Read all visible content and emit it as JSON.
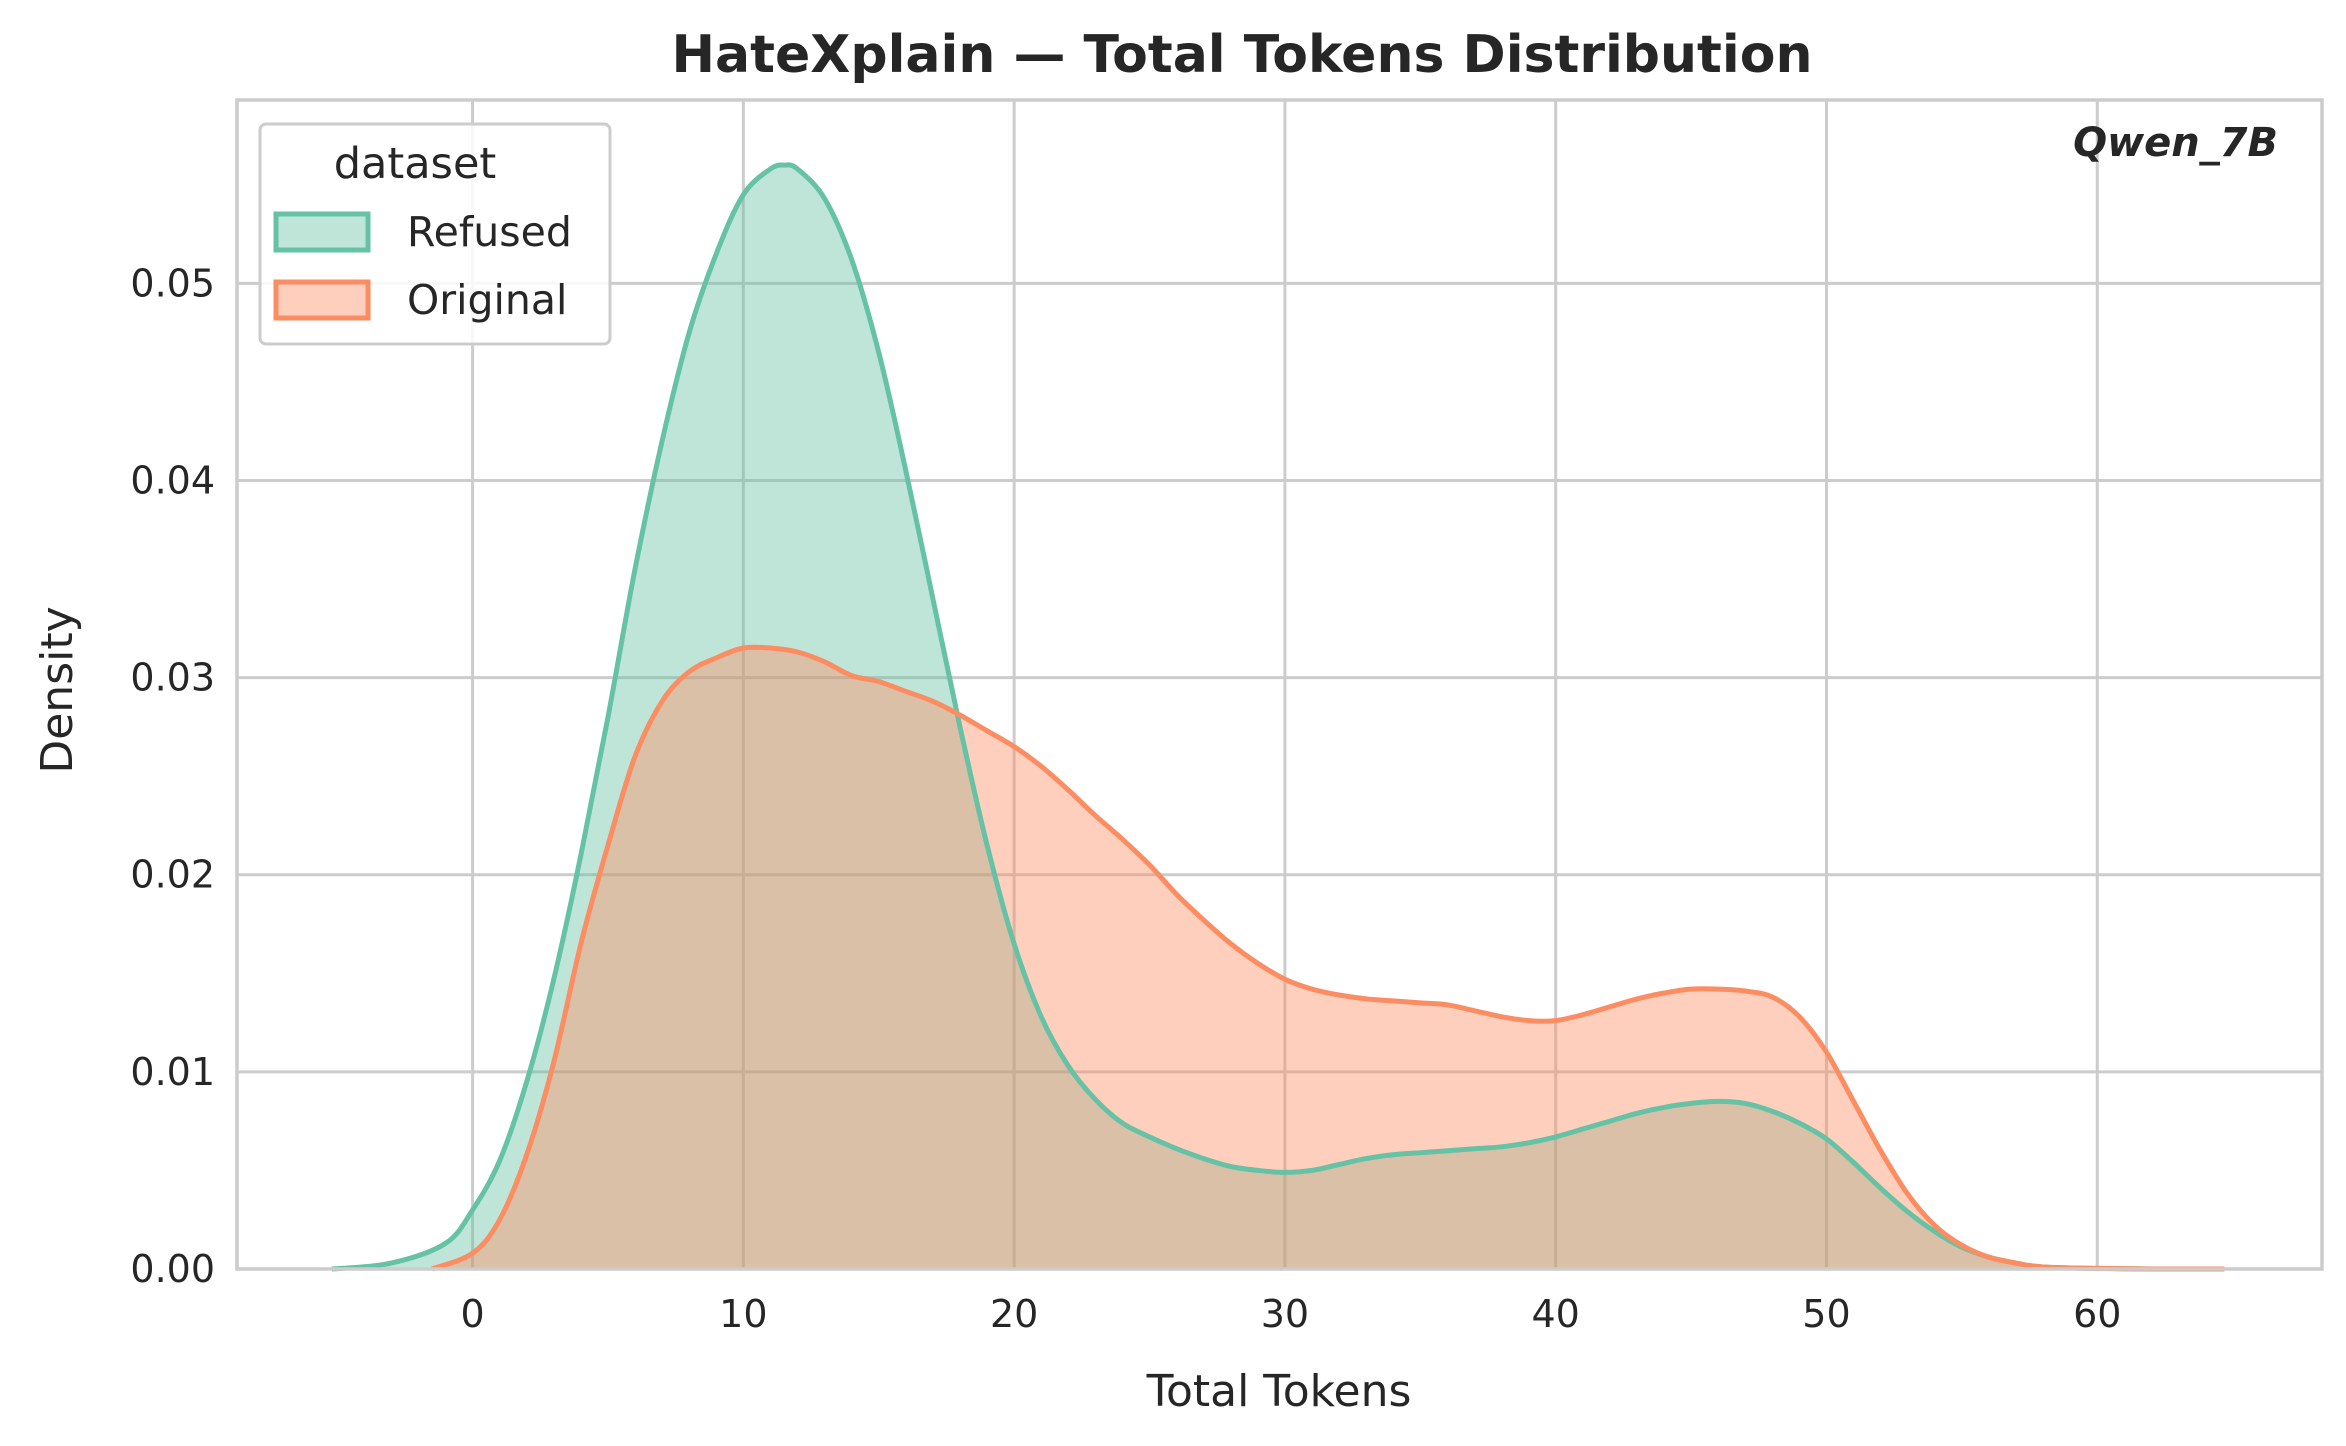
{
  "chart_data": {
    "type": "area",
    "title": "HateXplain — Total Tokens Distribution",
    "xlabel": "Total Tokens",
    "ylabel": "Density",
    "xlim": [
      -8.7,
      68.3
    ],
    "ylim": [
      0,
      0.0593
    ],
    "x_ticks": [
      0,
      10,
      20,
      30,
      40,
      50,
      60
    ],
    "y_ticks": [
      0.0,
      0.01,
      0.02,
      0.03,
      0.04,
      0.05
    ],
    "grid": true,
    "legend": {
      "title": "dataset",
      "placement": "top-left"
    },
    "annotation": "Qwen_7B",
    "colors": {
      "Refused": "#66c2a5",
      "Original": "#fc8d62"
    },
    "series": [
      {
        "name": "Refused",
        "x": [
          -5.2,
          -3,
          -1,
          0,
          1,
          2,
          3,
          4,
          5,
          6,
          7,
          8,
          9,
          10,
          11,
          11.5,
          12,
          13,
          14,
          15,
          16,
          17,
          18,
          19,
          20,
          21,
          22,
          23,
          24,
          25,
          26,
          27,
          28,
          29,
          30,
          31,
          32,
          33,
          34,
          35,
          36,
          37,
          38,
          39,
          40,
          41,
          42,
          43,
          44,
          45,
          46,
          47,
          48,
          49,
          50,
          51,
          52,
          53,
          54,
          55,
          56,
          57,
          58,
          60,
          62,
          64.7
        ],
        "values": [
          0.0,
          0.0003,
          0.0013,
          0.003,
          0.0055,
          0.0095,
          0.0147,
          0.021,
          0.028,
          0.0355,
          0.042,
          0.0475,
          0.0515,
          0.0545,
          0.0558,
          0.056,
          0.0558,
          0.0543,
          0.0512,
          0.0465,
          0.0405,
          0.034,
          0.0275,
          0.0215,
          0.0165,
          0.0128,
          0.0103,
          0.0086,
          0.0074,
          0.0067,
          0.0061,
          0.0056,
          0.0052,
          0.005,
          0.0049,
          0.005,
          0.0053,
          0.0056,
          0.0058,
          0.0059,
          0.006,
          0.0061,
          0.0062,
          0.0064,
          0.0067,
          0.0071,
          0.0075,
          0.0079,
          0.0082,
          0.0084,
          0.0085,
          0.0084,
          0.008,
          0.0074,
          0.0066,
          0.0054,
          0.0041,
          0.0029,
          0.0019,
          0.0011,
          0.0006,
          0.0003,
          0.0001,
          3e-05,
          0.0,
          0.0
        ]
      },
      {
        "name": "Original",
        "x": [
          -1.5,
          0,
          1,
          2,
          3,
          4,
          5,
          6,
          7,
          8,
          9,
          10,
          11,
          12,
          13,
          14,
          15,
          16,
          17,
          18,
          19,
          20,
          21,
          22,
          23,
          24,
          25,
          26,
          27,
          28,
          29,
          30,
          31,
          32,
          33,
          34,
          35,
          36,
          37,
          38,
          39,
          40,
          41,
          42,
          43,
          44,
          45,
          46,
          47,
          48,
          49,
          50,
          51,
          52,
          53,
          54,
          55,
          56,
          57,
          58,
          60,
          62,
          64.7
        ],
        "values": [
          0.0,
          0.0008,
          0.0025,
          0.0058,
          0.0105,
          0.0165,
          0.0215,
          0.026,
          0.0288,
          0.0303,
          0.031,
          0.0315,
          0.0315,
          0.0313,
          0.0308,
          0.0301,
          0.0298,
          0.0293,
          0.0288,
          0.0281,
          0.0273,
          0.0265,
          0.0255,
          0.0243,
          0.023,
          0.0218,
          0.0205,
          0.019,
          0.0177,
          0.0165,
          0.0155,
          0.0147,
          0.0142,
          0.0139,
          0.0137,
          0.0136,
          0.0135,
          0.0134,
          0.0131,
          0.0128,
          0.0126,
          0.0126,
          0.0129,
          0.0133,
          0.0137,
          0.014,
          0.0142,
          0.0142,
          0.0141,
          0.0138,
          0.0128,
          0.011,
          0.0085,
          0.006,
          0.0038,
          0.0022,
          0.0012,
          0.0006,
          0.0003,
          0.0001,
          3e-05,
          0.0,
          0.0
        ]
      }
    ]
  }
}
